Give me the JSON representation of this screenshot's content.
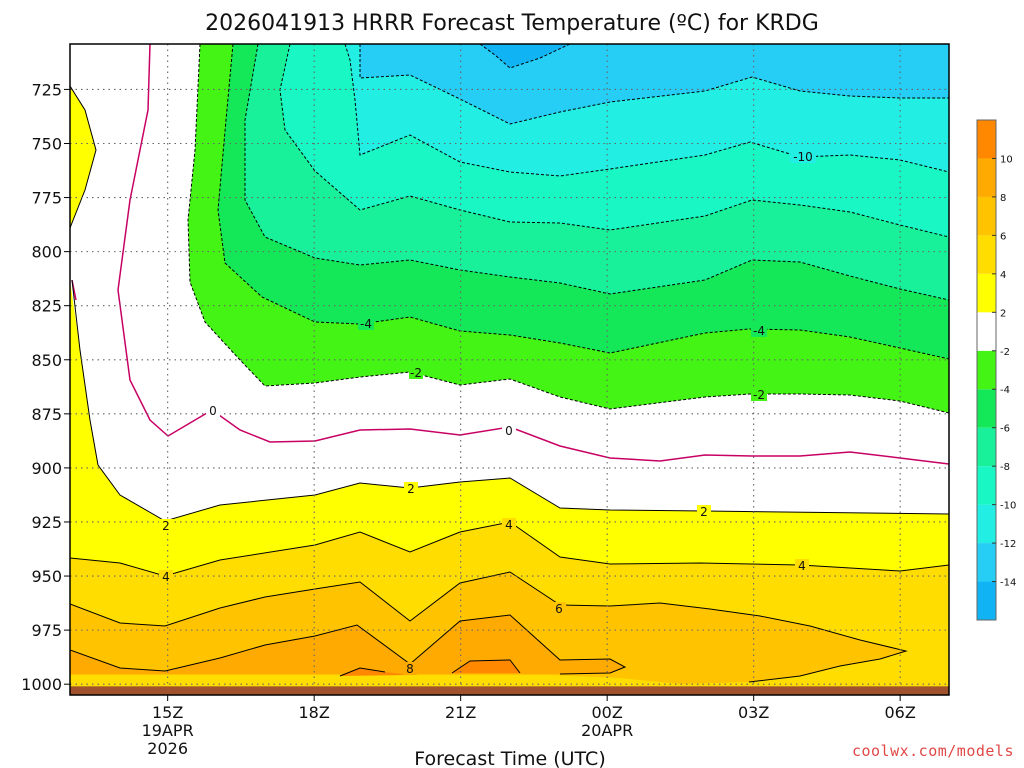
{
  "chart_data": {
    "type": "heatmap",
    "title": "2026041913 HRRR Forecast Temperature (ºC) for KRDG",
    "xlabel": "Forecast Time (UTC)",
    "ylabel": "",
    "x_ticks": [
      {
        "hour": 15,
        "label": "15Z",
        "sub": [
          "19APR",
          "2026"
        ]
      },
      {
        "hour": 18,
        "label": "18Z",
        "sub": []
      },
      {
        "hour": 21,
        "label": "21Z",
        "sub": []
      },
      {
        "hour": 24,
        "label": "00Z",
        "sub": [
          "20APR"
        ]
      },
      {
        "hour": 27,
        "label": "03Z",
        "sub": []
      },
      {
        "hour": 30,
        "label": "06Z",
        "sub": []
      }
    ],
    "xlim": [
      13,
      31
    ],
    "y_ticks": [
      725,
      750,
      775,
      800,
      825,
      850,
      875,
      900,
      925,
      950,
      975,
      1000
    ],
    "ylim": [
      1005,
      704
    ],
    "surface_pressure": 1001,
    "colorbar": {
      "levels": [
        -16,
        -14,
        -12,
        -10,
        -8,
        -6,
        -4,
        -2,
        2,
        4,
        6,
        8,
        10,
        12
      ],
      "labels": [
        "-14",
        "-12",
        "-10",
        "-8",
        "-6",
        "-4",
        "-2",
        "2",
        "4",
        "6",
        "8",
        "10"
      ],
      "colors": [
        "#10b4f4",
        "#26cdf5",
        "#22eee4",
        "#18f7c4",
        "#18f09a",
        "#14e858",
        "#44f414",
        "#ffffff",
        "#ffff00",
        "#ffdd00",
        "#ffc300",
        "#ffaa00",
        "#ff8800"
      ]
    },
    "grid": true,
    "watermark": "coolwx.com/models"
  }
}
